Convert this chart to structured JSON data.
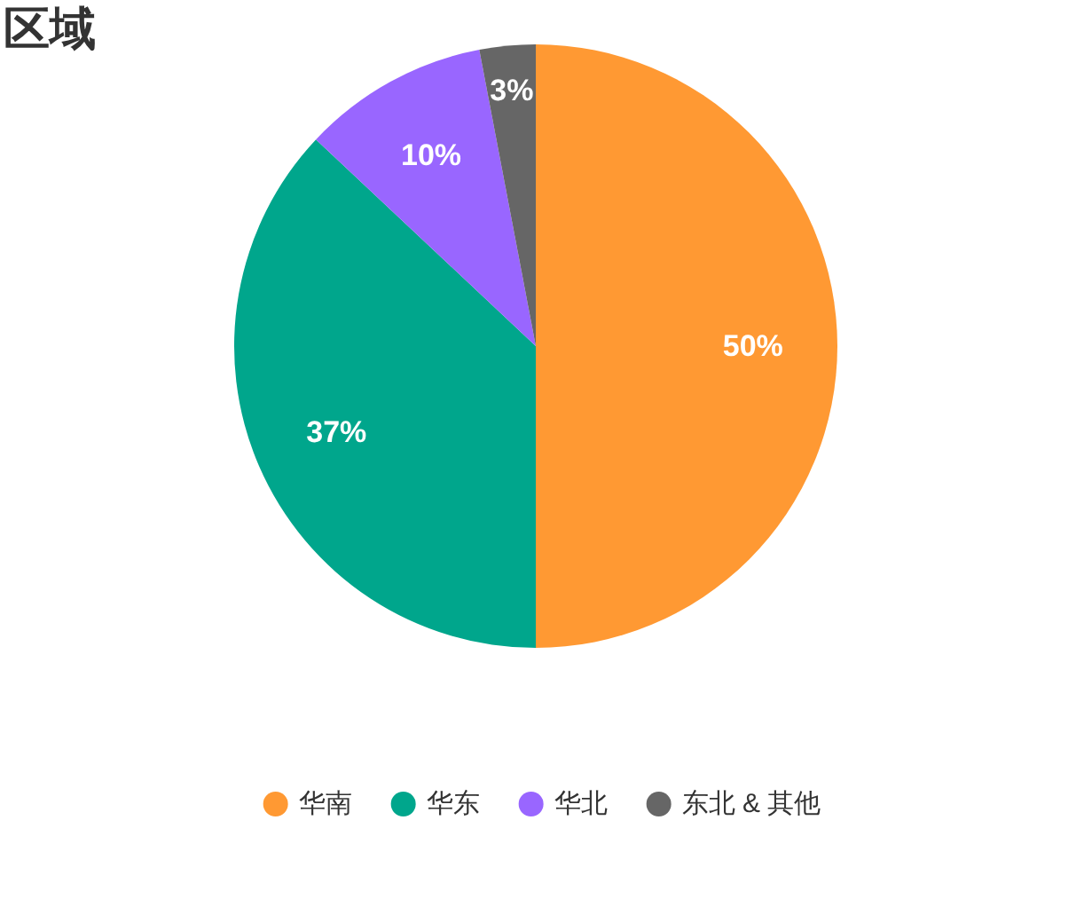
{
  "chart_data": {
    "type": "pie",
    "title": "区域",
    "categories": [
      "华南",
      "华东",
      "华北",
      "东北 & 其他"
    ],
    "values": [
      50,
      37,
      10,
      3
    ],
    "colors": [
      "#ff9933",
      "#00a68c",
      "#9966ff",
      "#666666"
    ],
    "value_labels": [
      "50%",
      "37%",
      "10%",
      "3%"
    ],
    "legend": "bottom"
  }
}
